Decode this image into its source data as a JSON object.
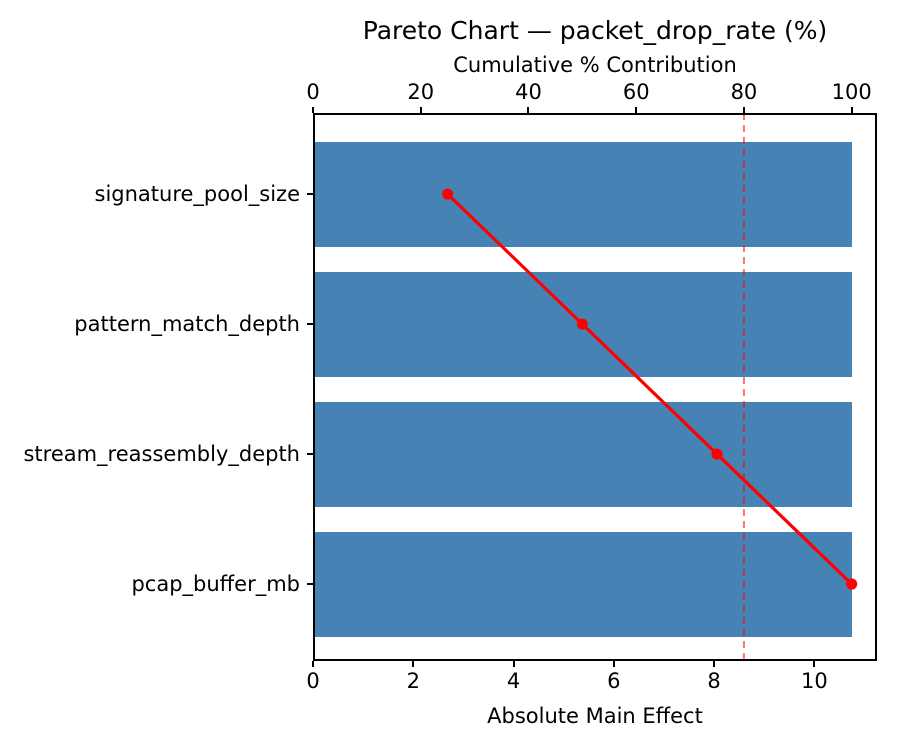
{
  "chart_data": {
    "type": "bar",
    "subtype": "pareto",
    "orientation": "horizontal",
    "title": "Pareto Chart — packet_drop_rate (%)",
    "top_axis_label": "Cumulative % Contribution",
    "xlabel": "Absolute Main Effect",
    "categories": [
      "signature_pool_size",
      "pattern_match_depth",
      "stream_reassembly_depth",
      "pcap_buffer_mb"
    ],
    "series": [
      {
        "name": "Absolute Main Effect",
        "type": "bar",
        "values": [
          10.75,
          10.75,
          10.75,
          10.75
        ]
      },
      {
        "name": "Cumulative % Contribution",
        "type": "line",
        "values": [
          25,
          50,
          75,
          100
        ]
      }
    ],
    "threshold_pct": 80,
    "bottom_axis_ticks": [
      0,
      2,
      4,
      6,
      8,
      10
    ],
    "top_axis_ticks": [
      0,
      20,
      40,
      60,
      80,
      100
    ],
    "xlim_bottom": [
      0,
      11.25
    ],
    "xlim_top": [
      0,
      104.7
    ],
    "grid": false,
    "legend": false,
    "colors": {
      "bar": "#4682B4",
      "line": "#ff0000",
      "threshold": "#ff0000",
      "threshold_opacity": 0.55,
      "axis": "#000000",
      "background": "#ffffff"
    }
  }
}
